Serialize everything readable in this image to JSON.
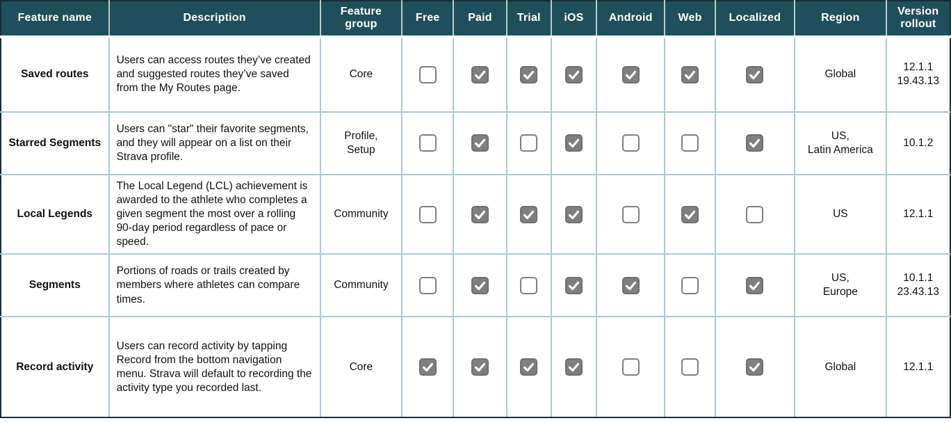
{
  "table": {
    "name": "feature-rollout-matrix",
    "columns": [
      {
        "key": "feature_name",
        "label": "Feature name",
        "type": "text"
      },
      {
        "key": "description",
        "label": "Description",
        "type": "text"
      },
      {
        "key": "feature_group",
        "label": "Feature group",
        "type": "text"
      },
      {
        "key": "free",
        "label": "Free",
        "type": "checkbox"
      },
      {
        "key": "paid",
        "label": "Paid",
        "type": "checkbox"
      },
      {
        "key": "trial",
        "label": "Trial",
        "type": "checkbox"
      },
      {
        "key": "ios",
        "label": "iOS",
        "type": "checkbox"
      },
      {
        "key": "android",
        "label": "Android",
        "type": "checkbox"
      },
      {
        "key": "web",
        "label": "Web",
        "type": "checkbox"
      },
      {
        "key": "localized",
        "label": "Localized",
        "type": "checkbox"
      },
      {
        "key": "region",
        "label": "Region",
        "type": "text"
      },
      {
        "key": "version_rollout",
        "label": "Version rollout",
        "type": "text"
      }
    ],
    "rows": [
      {
        "feature_name": "Saved routes",
        "description": "Users can access routes they’ve created and suggested routes they’ve saved from the My Routes page.",
        "feature_group": "Core",
        "free": false,
        "paid": true,
        "trial": true,
        "ios": true,
        "android": true,
        "web": true,
        "localized": true,
        "region": "Global",
        "version_rollout": "12.1.1\n19.43.13"
      },
      {
        "feature_name": "Starred Segments",
        "description": "Users can \"star\" their favorite segments, and they will appear on a list on their Strava profile.",
        "feature_group": "Profile,\nSetup",
        "free": false,
        "paid": true,
        "trial": false,
        "ios": true,
        "android": false,
        "web": false,
        "localized": true,
        "region": "US,\nLatin America",
        "version_rollout": "10.1.2"
      },
      {
        "feature_name": "Local Legends",
        "description": "The Local Legend (LCL) achievement is awarded to the athlete who completes a given segment the most over a rolling 90-day period regardless of pace or speed.",
        "feature_group": "Community",
        "free": false,
        "paid": true,
        "trial": true,
        "ios": true,
        "android": false,
        "web": true,
        "localized": false,
        "region": "US",
        "version_rollout": "12.1.1"
      },
      {
        "feature_name": "Segments",
        "description": "Portions of roads or trails created by members where athletes can compare times.",
        "feature_group": "Community",
        "free": false,
        "paid": true,
        "trial": false,
        "ios": true,
        "android": true,
        "web": false,
        "localized": true,
        "region": "US,\nEurope",
        "version_rollout": "10.1.1\n23.43.13"
      },
      {
        "feature_name": "Record activity",
        "description": "Users can record activity by tapping Record from the bottom navigation menu. Strava will default to recording the activity type you recorded last.",
        "feature_group": "Core",
        "free": true,
        "paid": true,
        "trial": true,
        "ios": true,
        "android": false,
        "web": false,
        "localized": true,
        "region": "Global",
        "version_rollout": "12.1.1"
      }
    ],
    "colors": {
      "header_bg": "#1F4F5B",
      "header_text": "#FFFFFF",
      "grid_border": "#ABC8D1",
      "outer_border": "#152E38",
      "checkbox_checked_bg": "#7F7F7F",
      "checkbox_border": "#808080",
      "check_mark": "#FFFFFF"
    }
  }
}
